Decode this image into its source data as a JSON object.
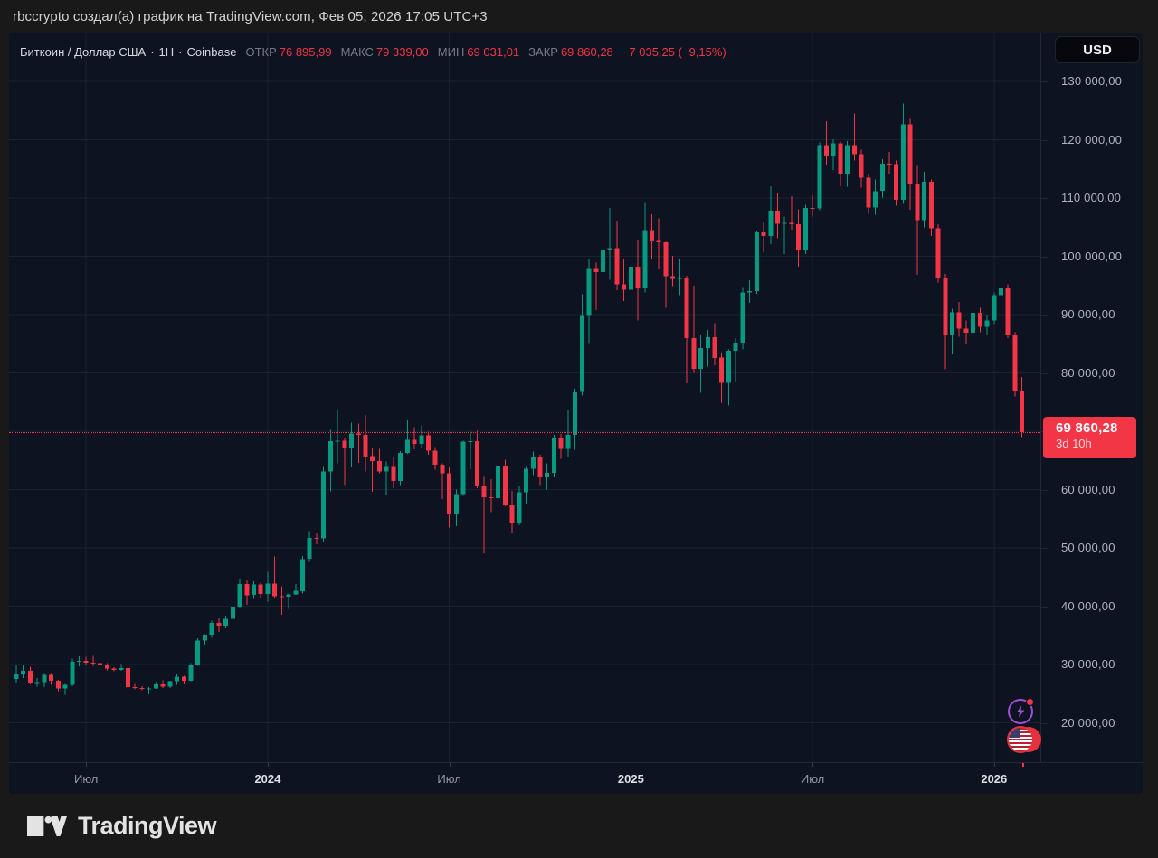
{
  "page": {
    "header_text": "rbccrypto создал(а) график на TradingView.com, Фев 05, 2026 17:05 UTC+3",
    "footer_logo_text": "TradingView"
  },
  "chart": {
    "legend": {
      "title": "Биткоин / Доллар США",
      "separator": "·",
      "interval": "1Н",
      "exchange": "Coinbase",
      "fields": [
        {
          "label": "ОТКР",
          "value": "76 895,99"
        },
        {
          "label": "МАКС",
          "value": "79 339,00"
        },
        {
          "label": "МИН",
          "value": "69 031,01"
        },
        {
          "label": "ЗАКР",
          "value": "69 860,28"
        }
      ],
      "change": "−7 035,25 (−9,15%)"
    },
    "currency_button": "USD",
    "price_label": {
      "price": "69 860,28",
      "countdown": "3d 10h"
    },
    "icons": [
      "flash-events-icon",
      "us-economic-events-icon"
    ]
  },
  "chart_data": {
    "type": "candlestick",
    "title": "Биткоин / Доллар США",
    "interval": "1Н",
    "exchange": "Coinbase",
    "ohlc": {
      "open": 76895.99,
      "high": 79339.0,
      "low": 69031.01,
      "close": 69860.28,
      "change": -7035.25,
      "change_pct": -9.15
    },
    "last": {
      "price": 69.86028,
      "label": "69 860,28",
      "countdown": "3d 10h"
    },
    "colors": {
      "up": "#089981",
      "down": "#f23645",
      "grid": "#1b2130",
      "accent": "#f23645"
    },
    "y_axis": {
      "unit": "USD",
      "min": 20000,
      "max": 130000,
      "values": [
        130,
        120,
        110,
        100,
        90,
        80,
        70,
        60,
        50,
        40,
        30,
        20
      ],
      "ticks": [
        "130 000,00",
        "120 000,00",
        "110 000,00",
        "100 000,00",
        "90 000,00",
        "80 000,00",
        "70 000,00",
        "60 000,00",
        "50 000,00",
        "40 000,00",
        "30 000,00",
        "20 000,00"
      ]
    },
    "x_axis": {
      "labels": [
        {
          "text": "Июл",
          "index": 10,
          "major": false
        },
        {
          "text": "2024",
          "index": 36,
          "major": true
        },
        {
          "text": "Июл",
          "index": 62,
          "major": false
        },
        {
          "text": "2025",
          "index": 88,
          "major": true
        },
        {
          "text": "Июл",
          "index": 114,
          "major": false
        },
        {
          "text": "2026",
          "index": 140,
          "major": true
        }
      ]
    },
    "candles_unit": "USD thousands, weekly [open, high, low, close]",
    "candles": [
      [
        27.5,
        30.0,
        26.9,
        28.3
      ],
      [
        28.3,
        29.9,
        27.7,
        28.9
      ],
      [
        28.9,
        29.6,
        26.6,
        26.9
      ],
      [
        26.9,
        27.7,
        26.2,
        27.0
      ],
      [
        27.0,
        28.5,
        26.1,
        28.2
      ],
      [
        28.2,
        28.5,
        26.5,
        27.2
      ],
      [
        27.2,
        27.4,
        25.4,
        25.9
      ],
      [
        25.9,
        26.8,
        24.8,
        26.5
      ],
      [
        26.5,
        31.0,
        26.3,
        30.5
      ],
      [
        30.5,
        31.4,
        29.7,
        30.6
      ],
      [
        30.6,
        31.3,
        29.9,
        30.3
      ],
      [
        30.3,
        31.5,
        29.8,
        30.2
      ],
      [
        30.2,
        30.4,
        29.5,
        29.9
      ],
      [
        29.9,
        30.2,
        29.0,
        29.3
      ],
      [
        29.3,
        29.5,
        28.8,
        29.1
      ],
      [
        29.1,
        30.1,
        28.9,
        29.4
      ],
      [
        29.4,
        29.6,
        25.4,
        26.1
      ],
      [
        26.1,
        26.8,
        25.7,
        26.0
      ],
      [
        26.0,
        26.3,
        25.6,
        25.9
      ],
      [
        25.9,
        26.1,
        24.9,
        25.9
      ],
      [
        25.9,
        27.0,
        25.8,
        26.6
      ],
      [
        26.6,
        27.3,
        26.0,
        26.2
      ],
      [
        26.2,
        27.2,
        26.0,
        27.1
      ],
      [
        27.1,
        28.3,
        26.5,
        27.9
      ],
      [
        27.9,
        28.1,
        26.7,
        27.2
      ],
      [
        27.2,
        30.2,
        27.1,
        29.9
      ],
      [
        29.9,
        34.5,
        29.8,
        34.1
      ],
      [
        34.1,
        35.2,
        33.4,
        35.1
      ],
      [
        35.1,
        37.5,
        34.6,
        37.1
      ],
      [
        37.1,
        37.9,
        35.6,
        36.7
      ],
      [
        36.7,
        38.4,
        36.2,
        37.8
      ],
      [
        37.8,
        40.2,
        37.0,
        39.9
      ],
      [
        39.9,
        44.7,
        39.6,
        43.8
      ],
      [
        43.8,
        44.4,
        40.2,
        41.9
      ],
      [
        41.9,
        44.3,
        41.4,
        43.7
      ],
      [
        43.7,
        44.0,
        41.5,
        42.1
      ],
      [
        42.1,
        45.9,
        40.8,
        43.9
      ],
      [
        43.9,
        48.5,
        41.5,
        41.7
      ],
      [
        41.7,
        43.4,
        38.5,
        41.6
      ],
      [
        41.6,
        42.2,
        39.5,
        42.0
      ],
      [
        42.0,
        43.8,
        41.9,
        42.6
      ],
      [
        42.6,
        48.6,
        42.2,
        48.1
      ],
      [
        48.1,
        52.9,
        47.6,
        51.7
      ],
      [
        51.7,
        52.5,
        50.6,
        51.6
      ],
      [
        51.6,
        64.0,
        50.9,
        63.1
      ],
      [
        63.1,
        70.2,
        59.7,
        68.3
      ],
      [
        68.3,
        73.8,
        64.5,
        68.4
      ],
      [
        68.4,
        68.9,
        60.8,
        67.2
      ],
      [
        67.2,
        71.5,
        63.8,
        69.6
      ],
      [
        69.6,
        71.3,
        64.6,
        69.4
      ],
      [
        69.4,
        72.8,
        63.1,
        65.7
      ],
      [
        65.7,
        67.2,
        59.6,
        64.9
      ],
      [
        64.9,
        67.0,
        62.8,
        63.1
      ],
      [
        63.1,
        64.8,
        59.1,
        64.0
      ],
      [
        64.0,
        65.5,
        60.2,
        61.5
      ],
      [
        61.5,
        66.6,
        60.8,
        66.3
      ],
      [
        66.3,
        71.9,
        66.1,
        68.5
      ],
      [
        68.5,
        70.7,
        66.9,
        67.8
      ],
      [
        67.8,
        71.0,
        67.1,
        69.3
      ],
      [
        69.3,
        69.9,
        66.0,
        66.7
      ],
      [
        66.7,
        67.3,
        63.4,
        64.3
      ],
      [
        64.3,
        64.5,
        58.4,
        62.8
      ],
      [
        62.8,
        63.8,
        53.5,
        55.9
      ],
      [
        55.9,
        60.0,
        53.7,
        59.2
      ],
      [
        59.2,
        68.4,
        58.9,
        68.2
      ],
      [
        68.2,
        69.9,
        63.5,
        68.3
      ],
      [
        68.3,
        70.1,
        60.2,
        60.7
      ],
      [
        60.7,
        62.2,
        49.1,
        58.7
      ],
      [
        58.7,
        61.8,
        56.1,
        58.5
      ],
      [
        58.5,
        65.0,
        57.9,
        64.1
      ],
      [
        64.1,
        65.1,
        57.1,
        57.3
      ],
      [
        57.3,
        59.8,
        52.5,
        54.2
      ],
      [
        54.2,
        60.6,
        53.9,
        59.5
      ],
      [
        59.5,
        64.0,
        57.5,
        63.6
      ],
      [
        63.6,
        66.5,
        62.5,
        65.6
      ],
      [
        65.6,
        66.0,
        60.8,
        62.1
      ],
      [
        62.1,
        64.5,
        60.0,
        62.9
      ],
      [
        62.9,
        69.4,
        62.1,
        68.9
      ],
      [
        68.9,
        69.5,
        65.3,
        67.0
      ],
      [
        67.0,
        73.6,
        65.6,
        69.4
      ],
      [
        69.4,
        77.3,
        66.8,
        76.7
      ],
      [
        76.7,
        93.5,
        76.1,
        89.9
      ],
      [
        89.9,
        99.6,
        85.1,
        98.0
      ],
      [
        98.0,
        98.9,
        90.8,
        97.3
      ],
      [
        97.3,
        104.0,
        94.0,
        101.2
      ],
      [
        101.2,
        108.3,
        96.0,
        101.4
      ],
      [
        101.4,
        106.1,
        94.2,
        95.2
      ],
      [
        95.2,
        99.5,
        92.3,
        94.3
      ],
      [
        94.3,
        99.8,
        91.5,
        98.2
      ],
      [
        98.2,
        102.7,
        89.0,
        94.6
      ],
      [
        94.6,
        109.3,
        93.8,
        104.5
      ],
      [
        104.5,
        107.2,
        99.5,
        102.6
      ],
      [
        102.6,
        106.5,
        97.8,
        102.4
      ],
      [
        102.4,
        102.5,
        91.2,
        96.6
      ],
      [
        96.6,
        100.1,
        94.9,
        96.1
      ],
      [
        96.1,
        99.5,
        93.3,
        96.3
      ],
      [
        96.3,
        96.7,
        78.2,
        86.0
      ],
      [
        86.0,
        95.0,
        80.0,
        80.7
      ],
      [
        80.7,
        86.5,
        76.6,
        84.3
      ],
      [
        84.3,
        87.4,
        81.1,
        86.1
      ],
      [
        86.1,
        88.5,
        81.3,
        82.6
      ],
      [
        82.6,
        83.5,
        74.9,
        78.3
      ],
      [
        78.3,
        84.0,
        74.4,
        83.8
      ],
      [
        83.8,
        86.0,
        78.4,
        85.2
      ],
      [
        85.2,
        94.7,
        84.0,
        93.8
      ],
      [
        93.8,
        95.9,
        92.0,
        94.0
      ],
      [
        94.0,
        104.3,
        93.6,
        104.1
      ],
      [
        104.1,
        105.8,
        100.7,
        103.5
      ],
      [
        103.5,
        112.0,
        102.1,
        107.8
      ],
      [
        107.8,
        110.8,
        103.1,
        105.6
      ],
      [
        105.6,
        106.8,
        100.4,
        105.7
      ],
      [
        105.7,
        110.3,
        104.6,
        105.5
      ],
      [
        105.5,
        108.1,
        98.2,
        101.0
      ],
      [
        101.0,
        108.8,
        100.4,
        108.3
      ],
      [
        108.3,
        110.5,
        106.8,
        108.2
      ],
      [
        108.2,
        119.5,
        107.9,
        119.1
      ],
      [
        119.1,
        123.2,
        115.7,
        117.2
      ],
      [
        117.2,
        120.1,
        114.8,
        119.4
      ],
      [
        119.4,
        119.7,
        112.0,
        114.2
      ],
      [
        114.2,
        119.8,
        111.9,
        119.1
      ],
      [
        119.1,
        124.5,
        116.4,
        117.5
      ],
      [
        117.5,
        118.3,
        111.8,
        113.5
      ],
      [
        113.5,
        114.0,
        107.3,
        108.4
      ],
      [
        108.4,
        113.2,
        107.1,
        111.2
      ],
      [
        111.2,
        116.7,
        110.1,
        115.9
      ],
      [
        115.9,
        117.9,
        114.1,
        115.8
      ],
      [
        115.8,
        116.4,
        108.7,
        109.7
      ],
      [
        109.7,
        126.2,
        109.0,
        122.6
      ],
      [
        122.6,
        123.6,
        108.0,
        112.3
      ],
      [
        112.3,
        115.5,
        96.8,
        106.2
      ],
      [
        106.2,
        114.5,
        105.0,
        112.8
      ],
      [
        112.8,
        113.2,
        103.5,
        104.8
      ],
      [
        104.8,
        105.5,
        95.5,
        96.3
      ],
      [
        96.3,
        97.0,
        80.6,
        86.5
      ],
      [
        86.5,
        91.0,
        83.3,
        90.4
      ],
      [
        90.4,
        92.2,
        86.2,
        87.6
      ],
      [
        87.6,
        89.0,
        84.9,
        86.9
      ],
      [
        86.9,
        91.0,
        86.0,
        90.3
      ],
      [
        90.3,
        91.2,
        87.0,
        87.9
      ],
      [
        87.9,
        90.0,
        86.5,
        89.0
      ],
      [
        89.0,
        93.8,
        88.4,
        93.3
      ],
      [
        93.3,
        98.0,
        92.5,
        94.5
      ],
      [
        94.5,
        95.2,
        86.0,
        86.6
      ],
      [
        86.6,
        87.0,
        76.0,
        76.9
      ],
      [
        76.896,
        79.339,
        69.031,
        69.86
      ]
    ]
  }
}
